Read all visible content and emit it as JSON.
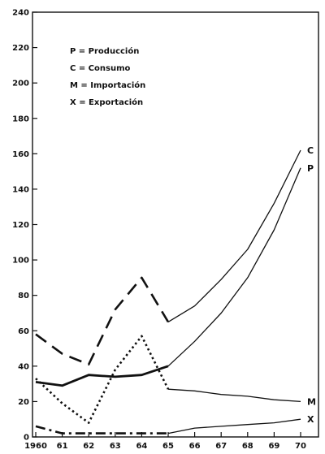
{
  "chart_data": {
    "type": "line",
    "title": "",
    "xlabel": "",
    "ylabel": "",
    "x": [
      1960,
      1961,
      1962,
      1963,
      1964,
      1965,
      1966,
      1967,
      1968,
      1969,
      1970
    ],
    "x_tick_labels": [
      "1960",
      "61",
      "62",
      "63",
      "64",
      "65",
      "66",
      "67",
      "68",
      "69",
      "70"
    ],
    "xlim": [
      1960,
      1970
    ],
    "ylim": [
      0,
      240
    ],
    "y_ticks": [
      0,
      20,
      40,
      60,
      80,
      100,
      120,
      140,
      160,
      180,
      200,
      220,
      240
    ],
    "y_tick_labels": [
      "0",
      "20",
      "40",
      "60",
      "80",
      "100",
      "120",
      "140",
      "160",
      "180",
      "200",
      "220",
      "240"
    ],
    "grid": false,
    "legend_position": "top-left",
    "legend": [
      {
        "key": "P",
        "text": "P = Producción"
      },
      {
        "key": "C",
        "text": "C = Consumo"
      },
      {
        "key": "M",
        "text": "M = Importación"
      },
      {
        "key": "X",
        "text": "X = Exportación"
      }
    ],
    "series": [
      {
        "key": "C",
        "end_label": "C",
        "style": "long-dash",
        "style2": "solid",
        "style_switch_index": 5,
        "values": [
          58,
          47,
          41,
          72,
          90,
          65,
          74,
          89,
          106,
          132,
          162
        ]
      },
      {
        "key": "P",
        "end_label": "P",
        "style": "thick-solid",
        "style2": "solid",
        "style_switch_index": 5,
        "values": [
          31,
          29,
          35,
          34,
          35,
          40,
          54,
          70,
          90,
          117,
          152
        ]
      },
      {
        "key": "M",
        "end_label": "M",
        "style": "dotted",
        "style2": "solid",
        "style_switch_index": 5,
        "values": [
          33,
          19,
          8,
          38,
          57,
          27,
          26,
          24,
          23,
          21,
          20
        ]
      },
      {
        "key": "X",
        "end_label": "X",
        "style": "dash-dot",
        "style2": "solid",
        "style_switch_index": 5,
        "values": [
          6,
          2,
          2,
          2,
          2,
          2,
          5,
          6,
          7,
          8,
          10
        ]
      }
    ],
    "line_color": "#111111"
  }
}
